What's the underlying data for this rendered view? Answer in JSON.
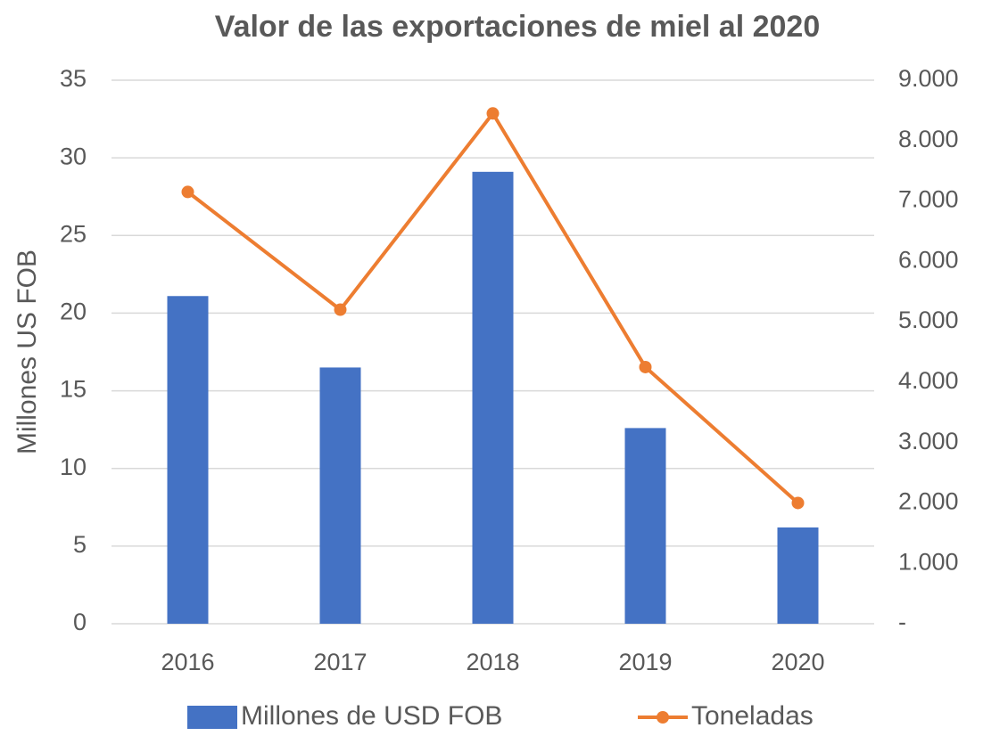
{
  "chart_data": {
    "type": "bar-line",
    "title": "Valor de las exportaciones de miel al 2020",
    "ylabel": "Millones US FOB",
    "categories": [
      "2016",
      "2017",
      "2018",
      "2019",
      "2020"
    ],
    "series": [
      {
        "name": "Millones de USD FOB",
        "type": "bar",
        "color": "#4472c4",
        "values": [
          21.1,
          16.5,
          29.1,
          12.6,
          6.2
        ]
      },
      {
        "name": "Toneladas",
        "type": "line",
        "axis": "y2",
        "color": "#ed7d31",
        "values": [
          7150,
          5200,
          8450,
          4250,
          2000
        ]
      }
    ],
    "ylim": [
      0,
      35
    ],
    "yticks": [
      0,
      5,
      10,
      15,
      20,
      25,
      30,
      35
    ],
    "y2lim": [
      0,
      9000
    ],
    "y2ticks": [
      {
        "value": 0,
        "label": "-"
      },
      {
        "value": 1000,
        "label": "1.000"
      },
      {
        "value": 2000,
        "label": "2.000"
      },
      {
        "value": 3000,
        "label": "3.000"
      },
      {
        "value": 4000,
        "label": "4.000"
      },
      {
        "value": 5000,
        "label": "5.000"
      },
      {
        "value": 6000,
        "label": "6.000"
      },
      {
        "value": 7000,
        "label": "7.000"
      },
      {
        "value": 8000,
        "label": "8.000"
      },
      {
        "value": 9000,
        "label": "9.000"
      }
    ],
    "grid": true,
    "legend": "bottom"
  }
}
